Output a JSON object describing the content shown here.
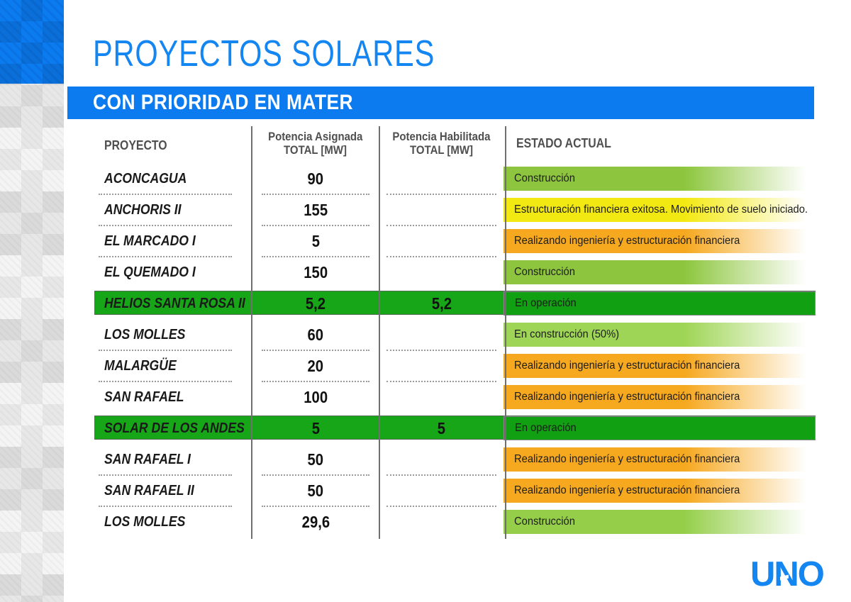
{
  "title": "PROYECTOS SOLARES",
  "banner": "CON PRIORIDAD EN MATER",
  "logo_text": "UNO",
  "colors": {
    "title_blue": "#1486f2",
    "banner_blue": "#0d7bf0",
    "logo_blue": "#1486f2",
    "highlight_row_green": "#17a617",
    "header_gray": "#4f4f4f",
    "line_gray": "#6f6f6f"
  },
  "table": {
    "headers": {
      "project": "PROYECTO",
      "assigned_line1": "Potencia Asignada",
      "assigned_line2": "TOTAL [MW]",
      "enabled_line1": "Potencia Habilitada",
      "enabled_line2": "TOTAL [MW]",
      "status": "ESTADO ACTUAL"
    },
    "rows": [
      {
        "project": "ACONCAGUA",
        "assigned": "90",
        "enabled": "",
        "status": "Construcción",
        "status_color": "#8dc63e",
        "highlight": false
      },
      {
        "project": "ANCHORIS II",
        "assigned": "155",
        "enabled": "",
        "status": "Estructuración financiera exitosa. Movimiento de suelo iniciado.",
        "status_color": "#f3e912",
        "highlight": false
      },
      {
        "project": "EL MARCADO I",
        "assigned": "5",
        "enabled": "",
        "status": "Realizando ingeniería y estructuración financiera",
        "status_color": "#f6a81f",
        "highlight": false
      },
      {
        "project": "EL QUEMADO I",
        "assigned": "150",
        "enabled": "",
        "status": "Construcción",
        "status_color": "#8dc63e",
        "highlight": false
      },
      {
        "project": "HELIOS SANTA ROSA II",
        "assigned": "5,2",
        "enabled": "5,2",
        "status": "En operación",
        "status_color": "#11a011",
        "highlight": true
      },
      {
        "project": "LOS MOLLES",
        "assigned": "60",
        "enabled": "",
        "status": "En construcción (50%)",
        "status_color": "#9fd556",
        "highlight": false
      },
      {
        "project": "MALARGÜE",
        "assigned": "20",
        "enabled": "",
        "status": "Realizando ingeniería y estructuración financiera",
        "status_color": "#f6a81f",
        "highlight": false
      },
      {
        "project": "SAN RAFAEL",
        "assigned": "100",
        "enabled": "",
        "status": "Realizando ingeniería y estructuración financiera",
        "status_color": "#f6a81f",
        "highlight": false
      },
      {
        "project": "SOLAR DE LOS ANDES",
        "assigned": "5",
        "enabled": "5",
        "status": "En operación",
        "status_color": "#11a011",
        "highlight": true
      },
      {
        "project": "SAN RAFAEL I",
        "assigned": "50",
        "enabled": "",
        "status": "Realizando ingeniería y estructuración financiera",
        "status_color": "#f6a81f",
        "highlight": false
      },
      {
        "project": "SAN RAFAEL II",
        "assigned": "50",
        "enabled": "",
        "status": "Realizando ingeniería y estructuración financiera",
        "status_color": "#f6a81f",
        "highlight": false
      },
      {
        "project": "LOS MOLLES",
        "assigned": "29,6",
        "enabled": "",
        "status": "Construcción",
        "status_color": "#95cf4a",
        "highlight": false
      }
    ]
  }
}
